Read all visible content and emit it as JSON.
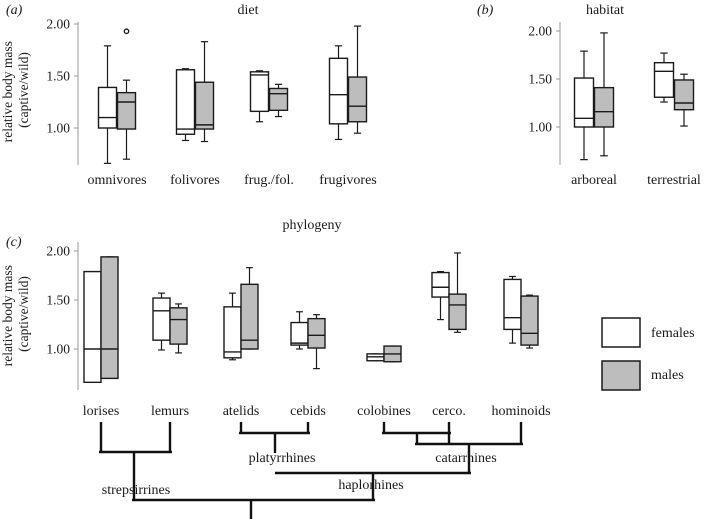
{
  "chart_data": [
    {
      "id": "diet",
      "type": "box",
      "panel_label": "(a)",
      "title": "diet",
      "ylabel": "relative body mass (captive/wild)",
      "ylim": [
        0.6,
        2.1
      ],
      "yticks": [
        "1.00",
        "1.50",
        "2.00"
      ],
      "categories": [
        "omnivores",
        "folivores",
        "frug./fol.",
        "frugivores"
      ],
      "series": [
        {
          "name": "females",
          "boxes": [
            {
              "min": 0.66,
              "q1": 1.0,
              "median": 1.1,
              "q3": 1.39,
              "max": 1.79
            },
            {
              "min": 0.88,
              "q1": 0.94,
              "median": 0.99,
              "q3": 1.56,
              "max": 1.57
            },
            {
              "min": 1.06,
              "q1": 1.16,
              "median": 1.51,
              "q3": 1.54,
              "max": 1.55
            },
            {
              "min": 0.89,
              "q1": 1.04,
              "median": 1.32,
              "q3": 1.67,
              "max": 1.79
            }
          ]
        },
        {
          "name": "males",
          "boxes": [
            {
              "min": 0.7,
              "q1": 0.99,
              "median": 1.25,
              "q3": 1.34,
              "max": 1.46,
              "outliers": [
                1.93
              ]
            },
            {
              "min": 0.87,
              "q1": 0.99,
              "median": 1.03,
              "q3": 1.44,
              "max": 1.83
            },
            {
              "min": 1.11,
              "q1": 1.17,
              "median": 1.33,
              "q3": 1.38,
              "max": 1.42
            },
            {
              "min": 0.95,
              "q1": 1.06,
              "median": 1.21,
              "q3": 1.49,
              "max": 1.98
            }
          ]
        }
      ]
    },
    {
      "id": "habitat",
      "type": "box",
      "panel_label": "(b)",
      "title": "habitat",
      "ylim": [
        0.6,
        2.1
      ],
      "yticks": [
        "1.00",
        "1.50",
        "2.00"
      ],
      "categories": [
        "arboreal",
        "terrestrial"
      ],
      "series": [
        {
          "name": "females",
          "boxes": [
            {
              "min": 0.66,
              "q1": 1.0,
              "median": 1.09,
              "q3": 1.51,
              "max": 1.79
            },
            {
              "min": 1.26,
              "q1": 1.31,
              "median": 1.58,
              "q3": 1.67,
              "max": 1.77
            }
          ]
        },
        {
          "name": "males",
          "boxes": [
            {
              "min": 0.7,
              "q1": 1.0,
              "median": 1.16,
              "q3": 1.41,
              "max": 1.98
            },
            {
              "min": 1.01,
              "q1": 1.18,
              "median": 1.25,
              "q3": 1.49,
              "max": 1.55
            }
          ]
        }
      ]
    },
    {
      "id": "phylogeny",
      "type": "box",
      "panel_label": "(c)",
      "title": "phylogeny",
      "ylabel": "relative body mass (captive/wild)",
      "ylim": [
        0.6,
        2.1
      ],
      "yticks": [
        "1.00",
        "1.50",
        "2.00"
      ],
      "categories": [
        "lorises",
        "lemurs",
        "atelids",
        "cebids",
        "colobines",
        "cerco.",
        "hominoids"
      ],
      "series": [
        {
          "name": "females",
          "boxes": [
            {
              "min": 0.66,
              "q1": 0.66,
              "median": 1.0,
              "q3": 1.79,
              "max": 1.79
            },
            {
              "min": 0.99,
              "q1": 1.09,
              "median": 1.39,
              "q3": 1.52,
              "max": 1.57
            },
            {
              "min": 0.89,
              "q1": 0.91,
              "median": 0.97,
              "q3": 1.43,
              "max": 1.57
            },
            {
              "min": 1.0,
              "q1": 1.04,
              "median": 1.06,
              "q3": 1.27,
              "max": 1.38
            },
            {
              "min": 0.88,
              "q1": 0.88,
              "median": 0.92,
              "q3": 0.95,
              "max": 0.95
            },
            {
              "min": 1.3,
              "q1": 1.53,
              "median": 1.63,
              "q3": 1.78,
              "max": 1.79
            },
            {
              "min": 1.06,
              "q1": 1.2,
              "median": 1.32,
              "q3": 1.71,
              "max": 1.74
            }
          ]
        },
        {
          "name": "males",
          "boxes": [
            {
              "min": 0.7,
              "q1": 0.7,
              "median": 1.0,
              "q3": 1.94,
              "max": 1.94
            },
            {
              "min": 0.96,
              "q1": 1.05,
              "median": 1.3,
              "q3": 1.42,
              "max": 1.46
            },
            {
              "min": 1.0,
              "q1": 1.0,
              "median": 1.09,
              "q3": 1.66,
              "max": 1.83
            },
            {
              "min": 0.8,
              "q1": 1.01,
              "median": 1.14,
              "q3": 1.31,
              "max": 1.35
            },
            {
              "min": 0.87,
              "q1": 0.87,
              "median": 0.95,
              "q3": 1.03,
              "max": 1.03
            },
            {
              "min": 1.17,
              "q1": 1.2,
              "median": 1.45,
              "q3": 1.56,
              "max": 1.98
            },
            {
              "min": 1.01,
              "q1": 1.04,
              "median": 1.16,
              "q3": 1.54,
              "max": 1.55
            }
          ]
        }
      ]
    }
  ],
  "legend": {
    "items": [
      {
        "label": "females",
        "color": "#ffffff"
      },
      {
        "label": "males",
        "color": "#bdbdbd"
      }
    ]
  },
  "phylogeny_tree": {
    "clades": [
      "platyrrhines",
      "catarrhines",
      "strepsirrines",
      "haplorhines"
    ]
  },
  "colors": {
    "female_fill": "#ffffff",
    "male_fill": "#bdbdbd",
    "stroke": "#1a1a1a",
    "axis": "#9a9a9a"
  }
}
